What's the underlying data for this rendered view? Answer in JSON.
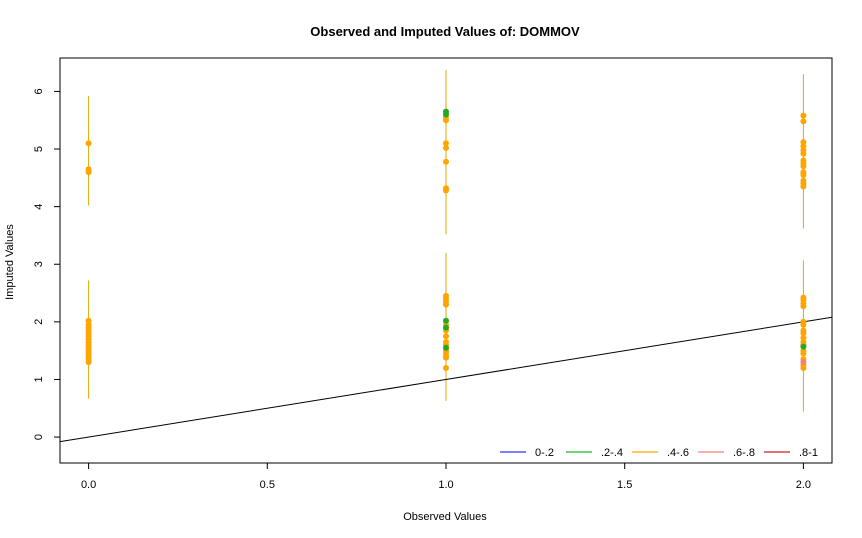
{
  "chart_data": {
    "type": "scatter",
    "title": "Observed and Imputed Values of: DOMMOV",
    "xlabel": "Observed Values",
    "ylabel": "Imputed Values",
    "xlim": [
      -0.08,
      2.08
    ],
    "ylim": [
      -0.45,
      6.58
    ],
    "x_ticks": [
      "0.0",
      "0.5",
      "1.0",
      "1.5",
      "2.0"
    ],
    "x_tick_values": [
      0,
      0.5,
      1.0,
      1.5,
      2.0
    ],
    "y_ticks": [
      "0",
      "1",
      "2",
      "3",
      "4",
      "5",
      "6"
    ],
    "y_tick_values": [
      0,
      1,
      2,
      3,
      4,
      5,
      6
    ],
    "reference_line": {
      "intercept": 0,
      "slope": 1,
      "color": "#000000"
    },
    "interval_color": "#e6a800",
    "intervals": [
      {
        "x": 0,
        "low": 4.02,
        "high": 5.92
      },
      {
        "x": 0,
        "low": 0.67,
        "high": 2.72
      },
      {
        "x": 1,
        "low": 3.52,
        "high": 6.37
      },
      {
        "x": 1,
        "low": 0.63,
        "high": 3.2
      },
      {
        "x": 2,
        "low": 3.62,
        "high": 6.3
      },
      {
        "x": 2,
        "low": 0.44,
        "high": 3.07
      }
    ],
    "series": [
      {
        "name": ".4-.6",
        "color": "#ffa500",
        "points": [
          [
            0,
            5.1
          ],
          [
            0,
            4.65
          ],
          [
            0,
            4.6
          ],
          [
            0,
            2.02
          ],
          [
            0,
            1.95
          ],
          [
            0,
            1.9
          ],
          [
            0,
            1.85
          ],
          [
            0,
            1.8
          ],
          [
            0,
            1.75
          ],
          [
            0,
            1.7
          ],
          [
            0,
            1.65
          ],
          [
            0,
            1.6
          ],
          [
            0,
            1.55
          ],
          [
            0,
            1.5
          ],
          [
            0,
            1.45
          ],
          [
            0,
            1.4
          ],
          [
            0,
            1.35
          ],
          [
            0,
            1.3
          ],
          [
            1,
            5.55
          ],
          [
            1,
            5.5
          ],
          [
            1,
            5.1
          ],
          [
            1,
            5.02
          ],
          [
            1,
            4.78
          ],
          [
            1,
            4.32
          ],
          [
            1,
            4.28
          ],
          [
            1,
            2.45
          ],
          [
            1,
            2.4
          ],
          [
            1,
            2.35
          ],
          [
            1,
            2.3
          ],
          [
            1,
            1.95
          ],
          [
            1,
            1.85
          ],
          [
            1,
            1.75
          ],
          [
            1,
            1.65
          ],
          [
            1,
            1.6
          ],
          [
            1,
            1.5
          ],
          [
            1,
            1.45
          ],
          [
            1,
            1.4
          ],
          [
            1,
            1.38
          ],
          [
            1,
            1.2
          ],
          [
            2,
            5.58
          ],
          [
            2,
            5.48
          ],
          [
            2,
            5.12
          ],
          [
            2,
            5.05
          ],
          [
            2,
            4.98
          ],
          [
            2,
            4.92
          ],
          [
            2,
            4.8
          ],
          [
            2,
            4.75
          ],
          [
            2,
            4.7
          ],
          [
            2,
            4.6
          ],
          [
            2,
            4.55
          ],
          [
            2,
            4.45
          ],
          [
            2,
            4.4
          ],
          [
            2,
            4.35
          ],
          [
            2,
            2.42
          ],
          [
            2,
            2.38
          ],
          [
            2,
            2.32
          ],
          [
            2,
            2.27
          ],
          [
            2,
            2.0
          ],
          [
            2,
            1.95
          ],
          [
            2,
            1.85
          ],
          [
            2,
            1.8
          ],
          [
            2,
            1.72
          ],
          [
            2,
            1.65
          ],
          [
            2,
            1.6
          ],
          [
            2,
            1.5
          ],
          [
            2,
            1.45
          ],
          [
            2,
            1.35
          ],
          [
            2,
            1.25
          ],
          [
            2,
            1.2
          ]
        ]
      },
      {
        "name": ".2-.4",
        "color": "#22aa22",
        "points": [
          [
            1,
            5.65
          ],
          [
            1,
            5.6
          ],
          [
            1,
            2.02
          ],
          [
            1,
            1.9
          ],
          [
            1,
            1.55
          ],
          [
            2,
            1.57
          ]
        ]
      },
      {
        "name": ".6-.8",
        "color": "#f08080",
        "points": [
          [
            2,
            1.3
          ]
        ]
      }
    ],
    "legend": {
      "placement": "bottom-right",
      "entries": [
        {
          "label": "0-.2",
          "color": "#3333ff"
        },
        {
          "label": ".2-.4",
          "color": "#22bb22"
        },
        {
          "label": ".4-.6",
          "color": "#ffa500"
        },
        {
          "label": ".6-.8",
          "color": "#f08080"
        },
        {
          "label": ".8-1",
          "color": "#cc2222"
        }
      ]
    },
    "grid": false
  }
}
